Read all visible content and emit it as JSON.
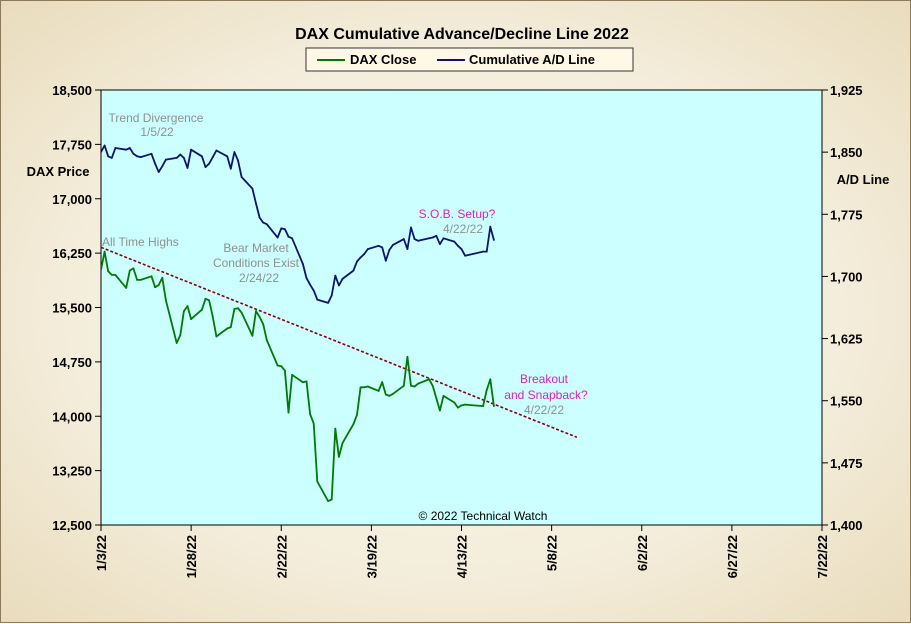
{
  "chart_data": {
    "type": "line",
    "title": "DAX Cumulative Advance/Decline Line 2022",
    "ylabel_left": "DAX Price",
    "ylabel_right": "A/D Line",
    "ylim_left": [
      12500,
      18500
    ],
    "ylim_right": [
      1400,
      1925
    ],
    "yticks_left": [
      "12,500",
      "13,250",
      "14,000",
      "14,750",
      "15,500",
      "16,250",
      "17,000",
      "17,750",
      "18,500"
    ],
    "yticks_right": [
      "1,400",
      "1,475",
      "1,550",
      "1,625",
      "1,700",
      "1,775",
      "1,850",
      "1,925"
    ],
    "xticks": [
      "1/3/22",
      "1/28/22",
      "2/22/22",
      "3/19/22",
      "4/13/22",
      "5/8/22",
      "6/2/22",
      "6/27/22",
      "7/22/22"
    ],
    "xlim": [
      "2022-01-03",
      "2022-07-22"
    ],
    "legend": [
      "DAX Close",
      "Cumulative A/D Line"
    ],
    "colors": {
      "dax": "#007a00",
      "ad": "#0d1470",
      "trend": "#8b0000",
      "plot_bg": "#ccffff",
      "magenta": "#e020c0",
      "gray": "#909090"
    },
    "series": [
      {
        "name": "DAX Close",
        "x": [
          "2022-01-03",
          "2022-01-04",
          "2022-01-05",
          "2022-01-06",
          "2022-01-07",
          "2022-01-10",
          "2022-01-11",
          "2022-01-12",
          "2022-01-13",
          "2022-01-14",
          "2022-01-17",
          "2022-01-18",
          "2022-01-19",
          "2022-01-20",
          "2022-01-21",
          "2022-01-24",
          "2022-01-25",
          "2022-01-26",
          "2022-01-27",
          "2022-01-28",
          "2022-01-31",
          "2022-02-01",
          "2022-02-02",
          "2022-02-03",
          "2022-02-04",
          "2022-02-07",
          "2022-02-08",
          "2022-02-09",
          "2022-02-10",
          "2022-02-11",
          "2022-02-14",
          "2022-02-15",
          "2022-02-16",
          "2022-02-17",
          "2022-02-18",
          "2022-02-21",
          "2022-02-22",
          "2022-02-23",
          "2022-02-24",
          "2022-02-25",
          "2022-02-28",
          "2022-03-01",
          "2022-03-02",
          "2022-03-03",
          "2022-03-04",
          "2022-03-07",
          "2022-03-08",
          "2022-03-09",
          "2022-03-10",
          "2022-03-11",
          "2022-03-14",
          "2022-03-15",
          "2022-03-16",
          "2022-03-17",
          "2022-03-18",
          "2022-03-21",
          "2022-03-22",
          "2022-03-23",
          "2022-03-24",
          "2022-03-25",
          "2022-03-28",
          "2022-03-29",
          "2022-03-30",
          "2022-03-31",
          "2022-04-01",
          "2022-04-04",
          "2022-04-05",
          "2022-04-06",
          "2022-04-07",
          "2022-04-08",
          "2022-04-11",
          "2022-04-12",
          "2022-04-13",
          "2022-04-14",
          "2022-04-19",
          "2022-04-20",
          "2022-04-21",
          "2022-04-22"
        ],
        "y": [
          16020,
          16270,
          16000,
          15950,
          15950,
          15770,
          16010,
          16040,
          15880,
          15880,
          15930,
          15780,
          15810,
          15910,
          15600,
          15010,
          15120,
          15450,
          15520,
          15340,
          15470,
          15620,
          15600,
          15370,
          15100,
          15210,
          15230,
          15480,
          15490,
          15430,
          15110,
          15450,
          15370,
          15270,
          15050,
          14700,
          14690,
          14630,
          14050,
          14570,
          14470,
          14480,
          14030,
          13900,
          13100,
          12830,
          12850,
          13830,
          13440,
          13630,
          13890,
          14020,
          14400,
          14400,
          14410,
          14350,
          14470,
          14300,
          14280,
          14310,
          14420,
          14820,
          14420,
          14410,
          14450,
          14510,
          14420,
          14250,
          14080,
          14280,
          14190,
          14120,
          14150,
          14160,
          14140,
          14360,
          14510,
          14140
        ]
      },
      {
        "name": "Cumulative A/D Line",
        "x": [
          "2022-01-03",
          "2022-01-04",
          "2022-01-05",
          "2022-01-06",
          "2022-01-07",
          "2022-01-10",
          "2022-01-11",
          "2022-01-12",
          "2022-01-13",
          "2022-01-14",
          "2022-01-17",
          "2022-01-18",
          "2022-01-19",
          "2022-01-20",
          "2022-01-21",
          "2022-01-24",
          "2022-01-25",
          "2022-01-26",
          "2022-01-27",
          "2022-01-28",
          "2022-01-31",
          "2022-02-01",
          "2022-02-02",
          "2022-02-03",
          "2022-02-04",
          "2022-02-07",
          "2022-02-08",
          "2022-02-09",
          "2022-02-10",
          "2022-02-11",
          "2022-02-14",
          "2022-02-15",
          "2022-02-16",
          "2022-02-17",
          "2022-02-18",
          "2022-02-21",
          "2022-02-22",
          "2022-02-23",
          "2022-02-24",
          "2022-02-25",
          "2022-02-28",
          "2022-03-01",
          "2022-03-02",
          "2022-03-03",
          "2022-03-04",
          "2022-03-07",
          "2022-03-08",
          "2022-03-09",
          "2022-03-10",
          "2022-03-11",
          "2022-03-14",
          "2022-03-15",
          "2022-03-16",
          "2022-03-17",
          "2022-03-18",
          "2022-03-21",
          "2022-03-22",
          "2022-03-23",
          "2022-03-24",
          "2022-03-25",
          "2022-03-28",
          "2022-03-29",
          "2022-03-30",
          "2022-03-31",
          "2022-04-01",
          "2022-04-04",
          "2022-04-05",
          "2022-04-06",
          "2022-04-07",
          "2022-04-08",
          "2022-04-11",
          "2022-04-12",
          "2022-04-13",
          "2022-04-14",
          "2022-04-19",
          "2022-04-20",
          "2022-04-21",
          "2022-04-22"
        ],
        "y": [
          1850,
          1858,
          1845,
          1843,
          1855,
          1853,
          1855,
          1848,
          1845,
          1844,
          1848,
          1836,
          1826,
          1833,
          1841,
          1843,
          1847,
          1843,
          1831,
          1853,
          1845,
          1832,
          1836,
          1844,
          1852,
          1845,
          1830,
          1850,
          1840,
          1820,
          1806,
          1788,
          1771,
          1765,
          1763,
          1747,
          1758,
          1757,
          1748,
          1746,
          1715,
          1698,
          1690,
          1683,
          1672,
          1668,
          1677,
          1701,
          1689,
          1697,
          1707,
          1718,
          1723,
          1727,
          1733,
          1737,
          1735,
          1719,
          1732,
          1738,
          1745,
          1733,
          1759,
          1745,
          1743,
          1746,
          1747,
          1749,
          1739,
          1746,
          1742,
          1737,
          1733,
          1725,
          1730,
          1730,
          1760,
          1744
        ]
      }
    ],
    "trend_line": {
      "x": [
        "2022-01-03",
        "2022-05-15"
      ],
      "y": [
        16330,
        13710
      ]
    },
    "annotations": {
      "trend_divergence": "Trend  Divergence",
      "trend_divergence_date": "1/5/22",
      "all_time_highs": "All Time Highs",
      "bear_market_1": "Bear Market",
      "bear_market_2": "Conditions  Exist",
      "bear_market_date": "2/24/22",
      "sob_setup": "S.O.B. Setup?",
      "sob_date": "4/22/22",
      "breakout": "Breakout",
      "snapback": "and  Snapback?",
      "breakout_date": "4/22/22",
      "copyright": "© 2022  Technical  Watch"
    }
  }
}
